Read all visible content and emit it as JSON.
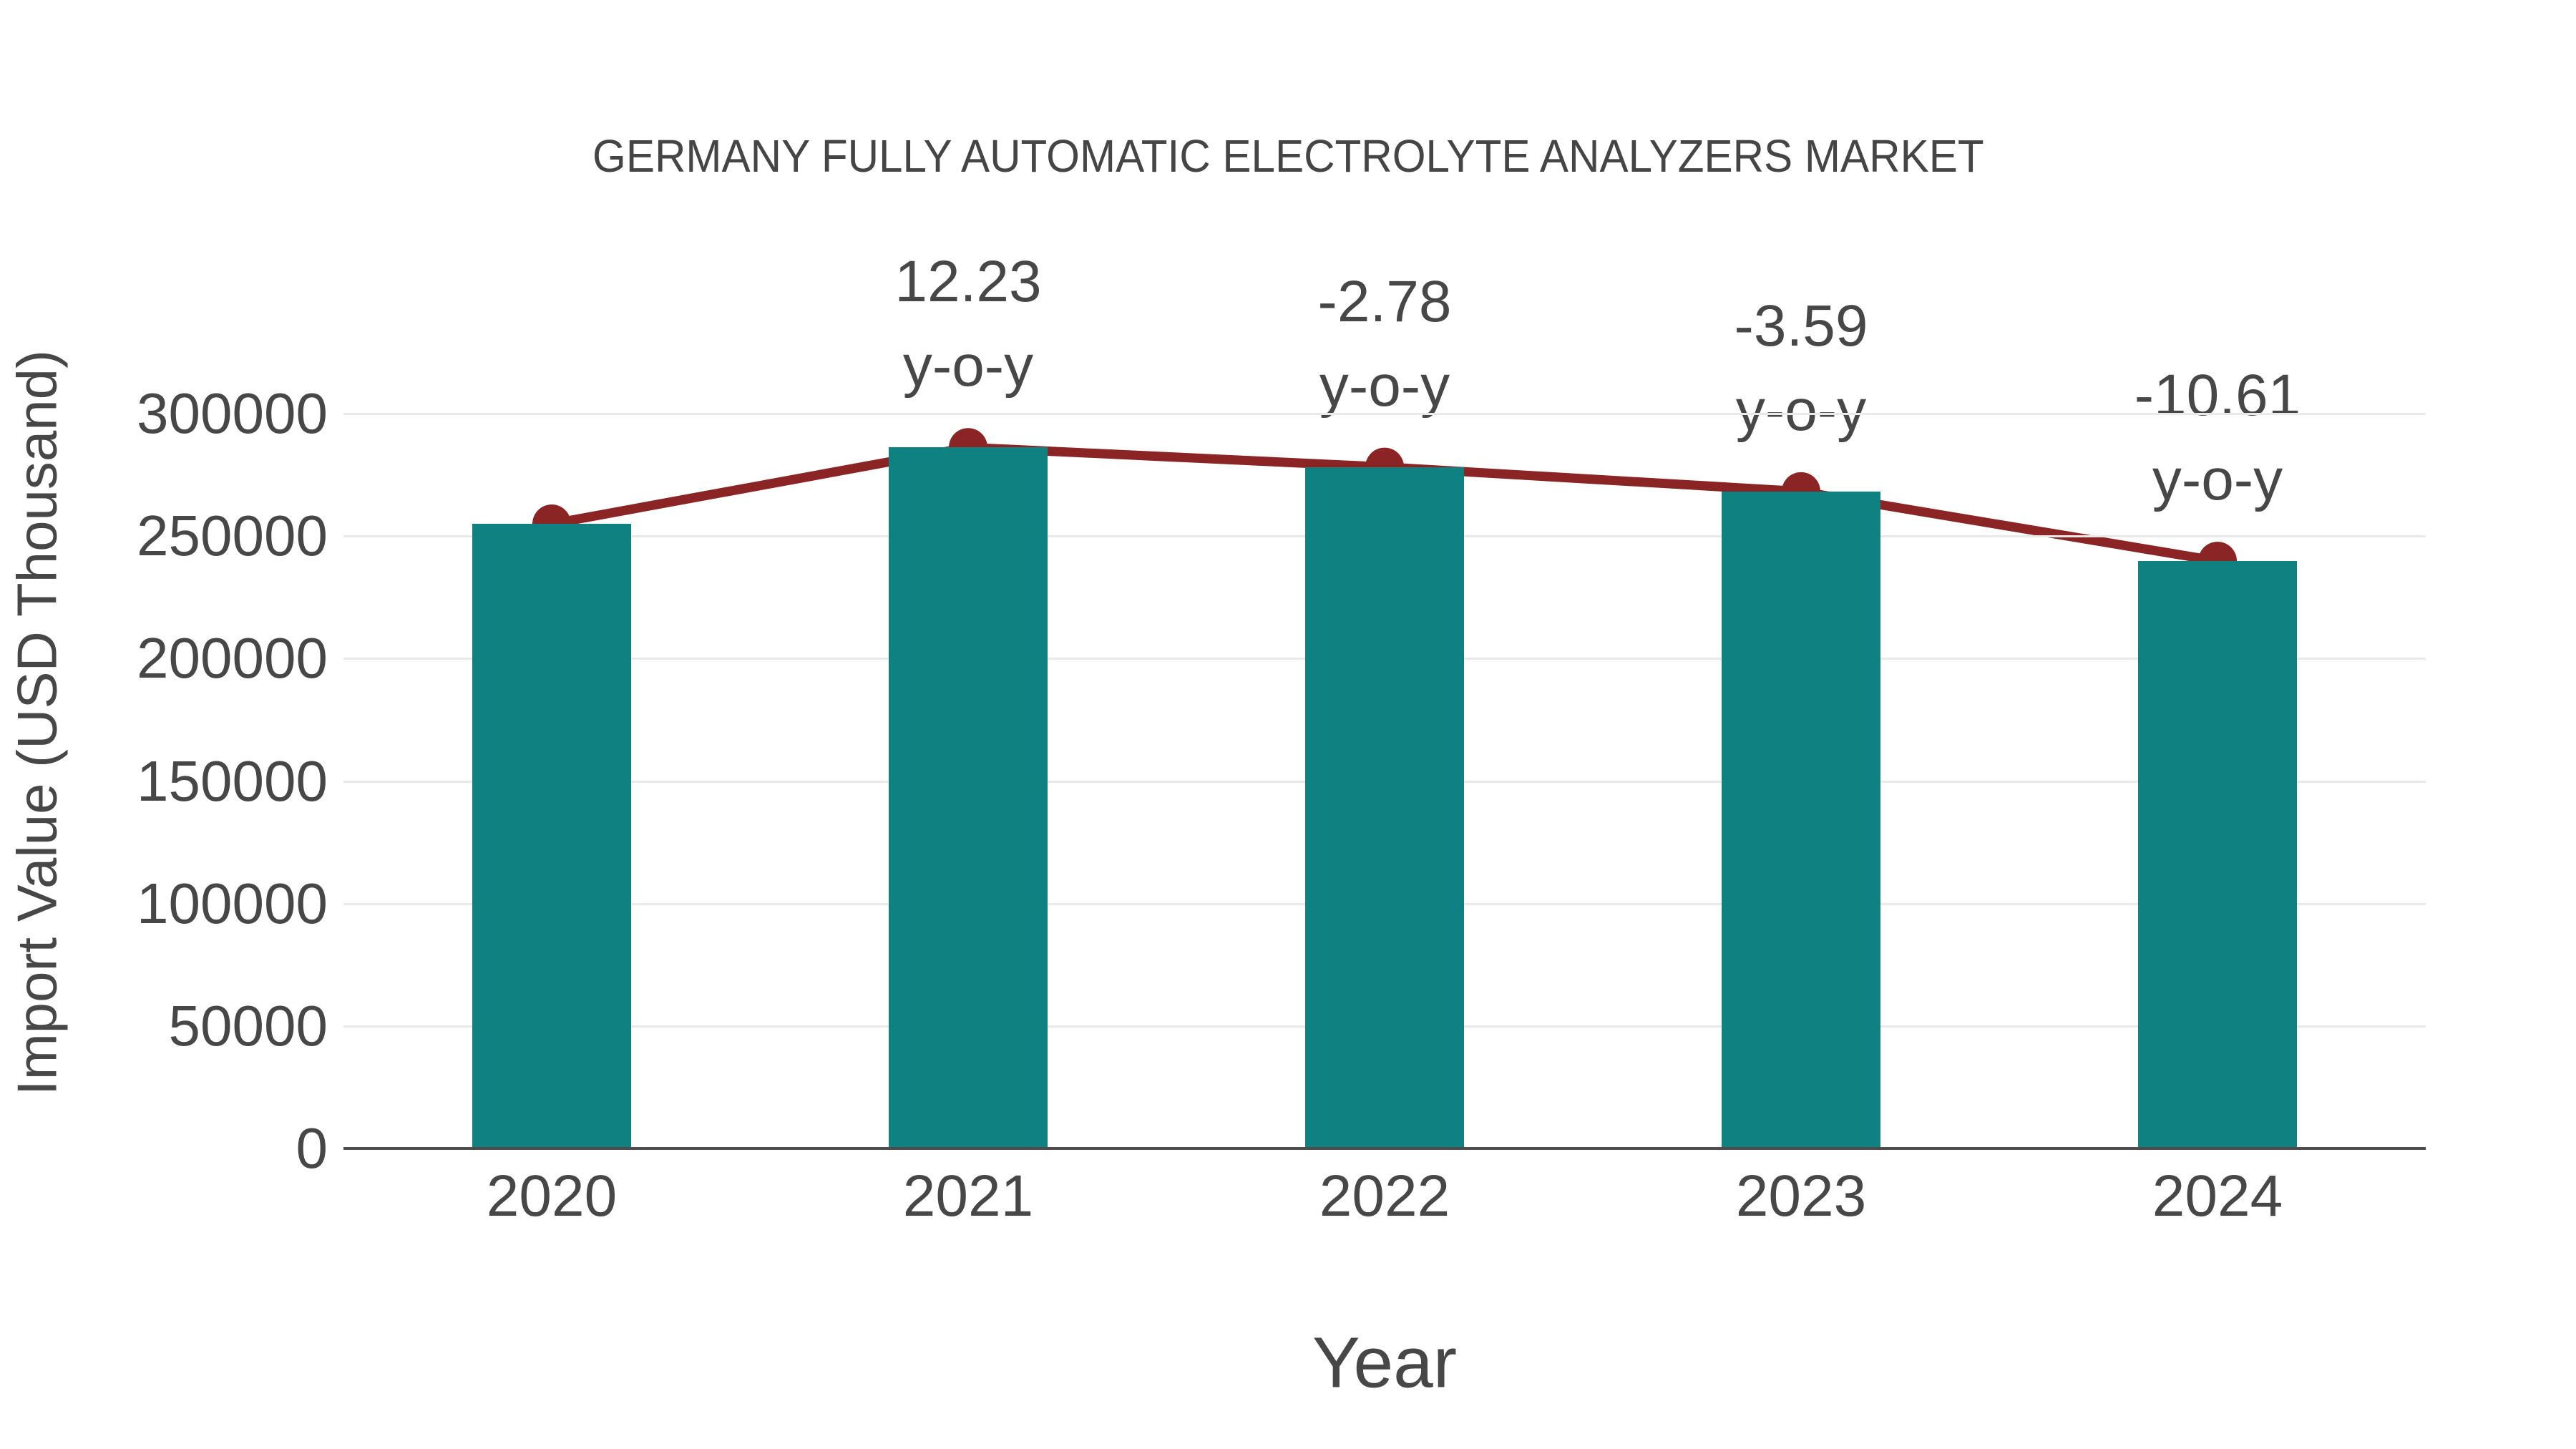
{
  "chart_data": {
    "type": "bar",
    "title": "GERMANY FULLY AUTOMATIC ELECTROLYTE ANALYZERS MARKET",
    "xlabel": "Year",
    "ylabel": "Import Value (USD Thousand)",
    "categories": [
      "2020",
      "2021",
      "2022",
      "2023",
      "2024"
    ],
    "series": [
      {
        "name": "Import Value bars",
        "type": "bar",
        "values": [
          255000,
          286200,
          278200,
          268200,
          239800
        ]
      },
      {
        "name": "Import Value trend line",
        "type": "line",
        "values": [
          255000,
          286200,
          278200,
          268200,
          239800
        ]
      }
    ],
    "annotations": [
      {
        "category": "2021",
        "value_label": "12.23",
        "suffix_label": "y-o-y"
      },
      {
        "category": "2022",
        "value_label": "-2.78",
        "suffix_label": "y-o-y"
      },
      {
        "category": "2023",
        "value_label": "-3.59",
        "suffix_label": "y-o-y"
      },
      {
        "category": "2024",
        "value_label": "-10.61",
        "suffix_label": "y-o-y"
      }
    ],
    "y_ticks": [
      {
        "value": 0,
        "label": "0"
      },
      {
        "value": 50000,
        "label": "50000"
      },
      {
        "value": 100000,
        "label": "100000"
      },
      {
        "value": 150000,
        "label": "150000"
      },
      {
        "value": 200000,
        "label": "200000"
      },
      {
        "value": 250000,
        "label": "250000"
      },
      {
        "value": 300000,
        "label": "300000"
      }
    ],
    "ylim": [
      0,
      330000
    ],
    "grid": true,
    "legend": "none",
    "colors": {
      "bar": "#108181",
      "line": "#8B2424",
      "marker": "#8B2424",
      "text": "#474747",
      "gridline": "#e9e9e9",
      "axis": "#4d4d4d"
    }
  }
}
